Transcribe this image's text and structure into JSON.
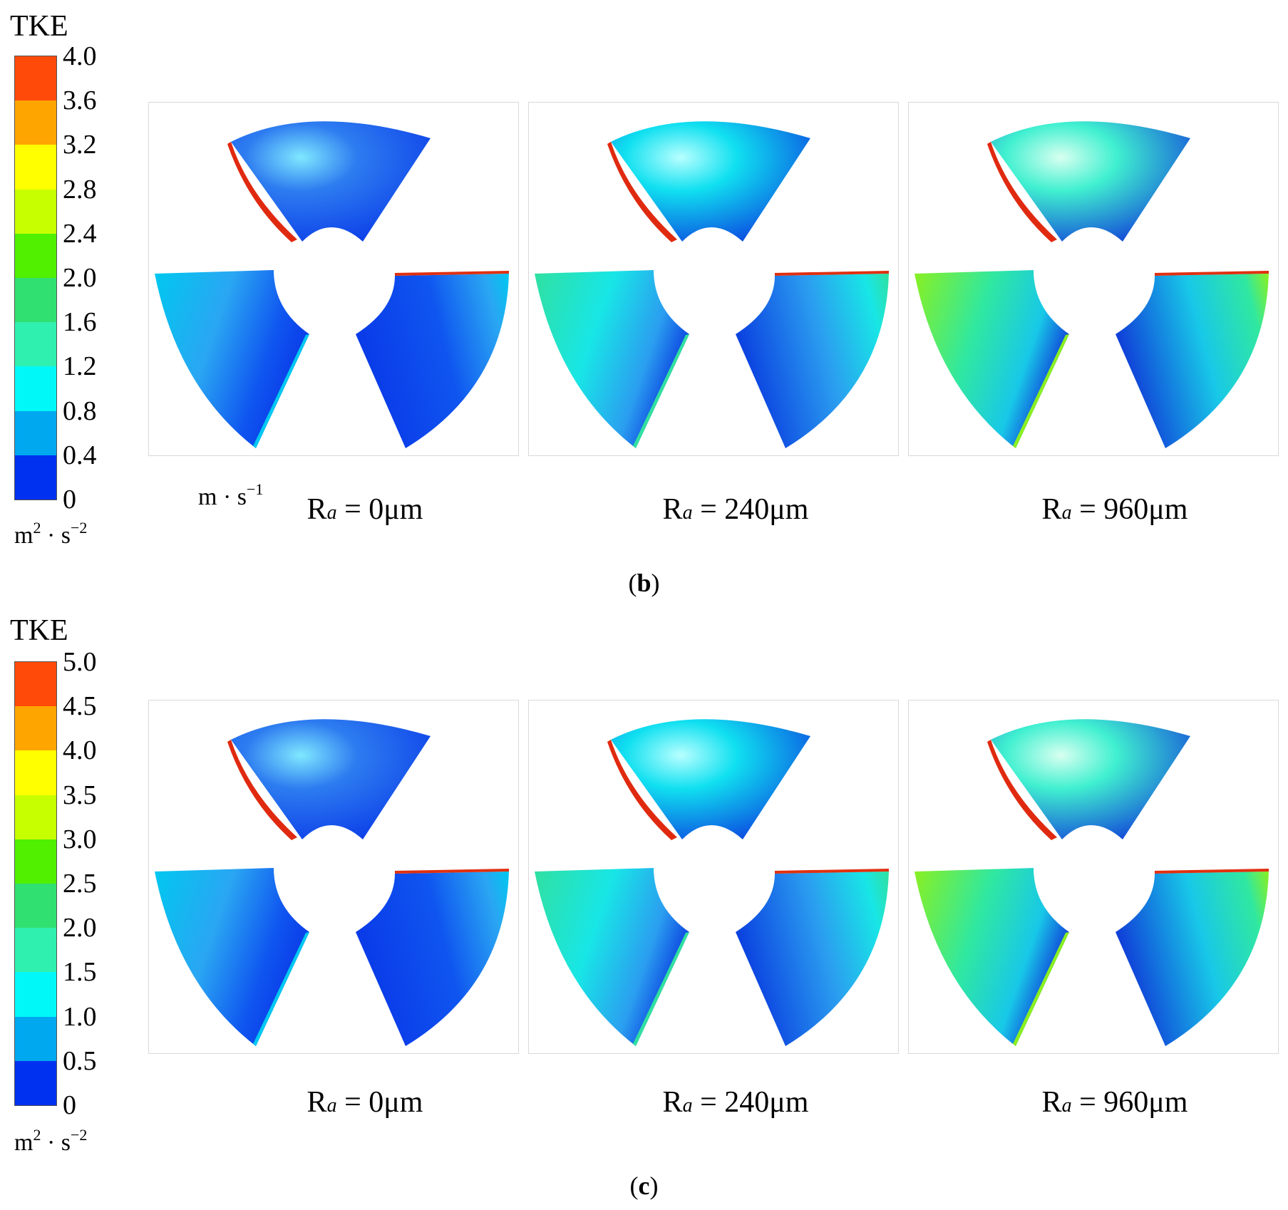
{
  "figures": [
    {
      "id": "b",
      "colorbar": {
        "title": "TKE",
        "ticks": [
          "4.0",
          "3.6",
          "3.2",
          "2.8",
          "2.4",
          "2.0",
          "1.6",
          "1.2",
          "0.8",
          "0.4",
          "0"
        ],
        "units": {
          "base1": "m",
          "exp1": "2",
          "base2": "s",
          "exp2": "−2"
        },
        "colors": [
          "#ff4a0a",
          "#ffa500",
          "#ffff00",
          "#c8ff00",
          "#50f000",
          "#30e070",
          "#30f0b0",
          "#00f8f8",
          "#00a8f0",
          "#0030f0"
        ]
      },
      "velocity_units": {
        "base1": "m",
        "base2": "s",
        "exp2": "−1"
      },
      "panels": [
        {
          "ra_value": "0",
          "ra_unit": "μm",
          "level": 0
        },
        {
          "ra_value": "240",
          "ra_unit": "μm",
          "level": 1
        },
        {
          "ra_value": "960",
          "ra_unit": "μm",
          "level": 2
        }
      ],
      "caption_letter": "b"
    },
    {
      "id": "c",
      "colorbar": {
        "title": "TKE",
        "ticks": [
          "5.0",
          "4.5",
          "4.0",
          "3.5",
          "3.0",
          "2.5",
          "2.0",
          "1.5",
          "1.0",
          "0.5",
          "0"
        ],
        "units": {
          "base1": "m",
          "exp1": "2",
          "base2": "s",
          "exp2": "−2"
        },
        "colors": [
          "#ff4a0a",
          "#ffa500",
          "#ffff00",
          "#c8ff00",
          "#50f000",
          "#30e070",
          "#30f0b0",
          "#00f8f8",
          "#00a8f0",
          "#0030f0"
        ]
      },
      "panels": [
        {
          "ra_value": "0",
          "ra_unit": "μm",
          "level": 0
        },
        {
          "ra_value": "240",
          "ra_unit": "μm",
          "level": 1
        },
        {
          "ra_value": "960",
          "ra_unit": "μm",
          "level": 2
        }
      ],
      "caption_letter": "c"
    }
  ],
  "ra_symbol": "R",
  "ra_subscript": "a",
  "dot": "·"
}
